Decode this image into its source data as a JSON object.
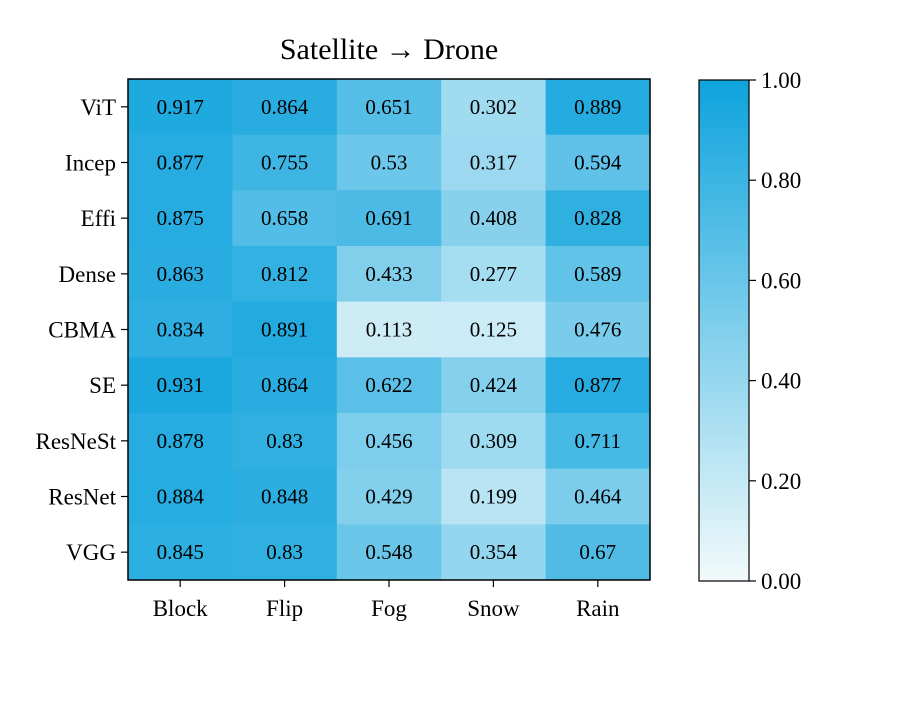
{
  "chart_data": {
    "type": "heatmap",
    "title": "Satellite → Drone",
    "x_categories": [
      "Block",
      "Flip",
      "Fog",
      "Snow",
      "Rain"
    ],
    "y_categories": [
      "ViT",
      "Incep",
      "Effi",
      "Dense",
      "CBMA",
      "SE",
      "ResNeSt",
      "ResNet",
      "VGG"
    ],
    "cell_labels": [
      [
        "0.917",
        "0.864",
        "0.651",
        "0.302",
        "0.889"
      ],
      [
        "0.877",
        "0.755",
        "0.53",
        "0.317",
        "0.594"
      ],
      [
        "0.875",
        "0.658",
        "0.691",
        "0.408",
        "0.828"
      ],
      [
        "0.863",
        "0.812",
        "0.433",
        "0.277",
        "0.589"
      ],
      [
        "0.834",
        "0.891",
        "0.113",
        "0.125",
        "0.476"
      ],
      [
        "0.931",
        "0.864",
        "0.622",
        "0.424",
        "0.877"
      ],
      [
        "0.878",
        "0.83",
        "0.456",
        "0.309",
        "0.711"
      ],
      [
        "0.884",
        "0.848",
        "0.429",
        "0.199",
        "0.464"
      ],
      [
        "0.845",
        "0.83",
        "0.548",
        "0.354",
        "0.67"
      ]
    ],
    "colorbar": {
      "range": [
        0,
        1
      ],
      "ticks": [
        0,
        0.2,
        0.4,
        0.6,
        0.8,
        1.0
      ],
      "tick_labels": [
        "0.00",
        "0.20",
        "0.40",
        "0.60",
        "0.80",
        "1.00"
      ],
      "color_low": "#f2fafb",
      "color_high": "#0ea3dd"
    }
  }
}
